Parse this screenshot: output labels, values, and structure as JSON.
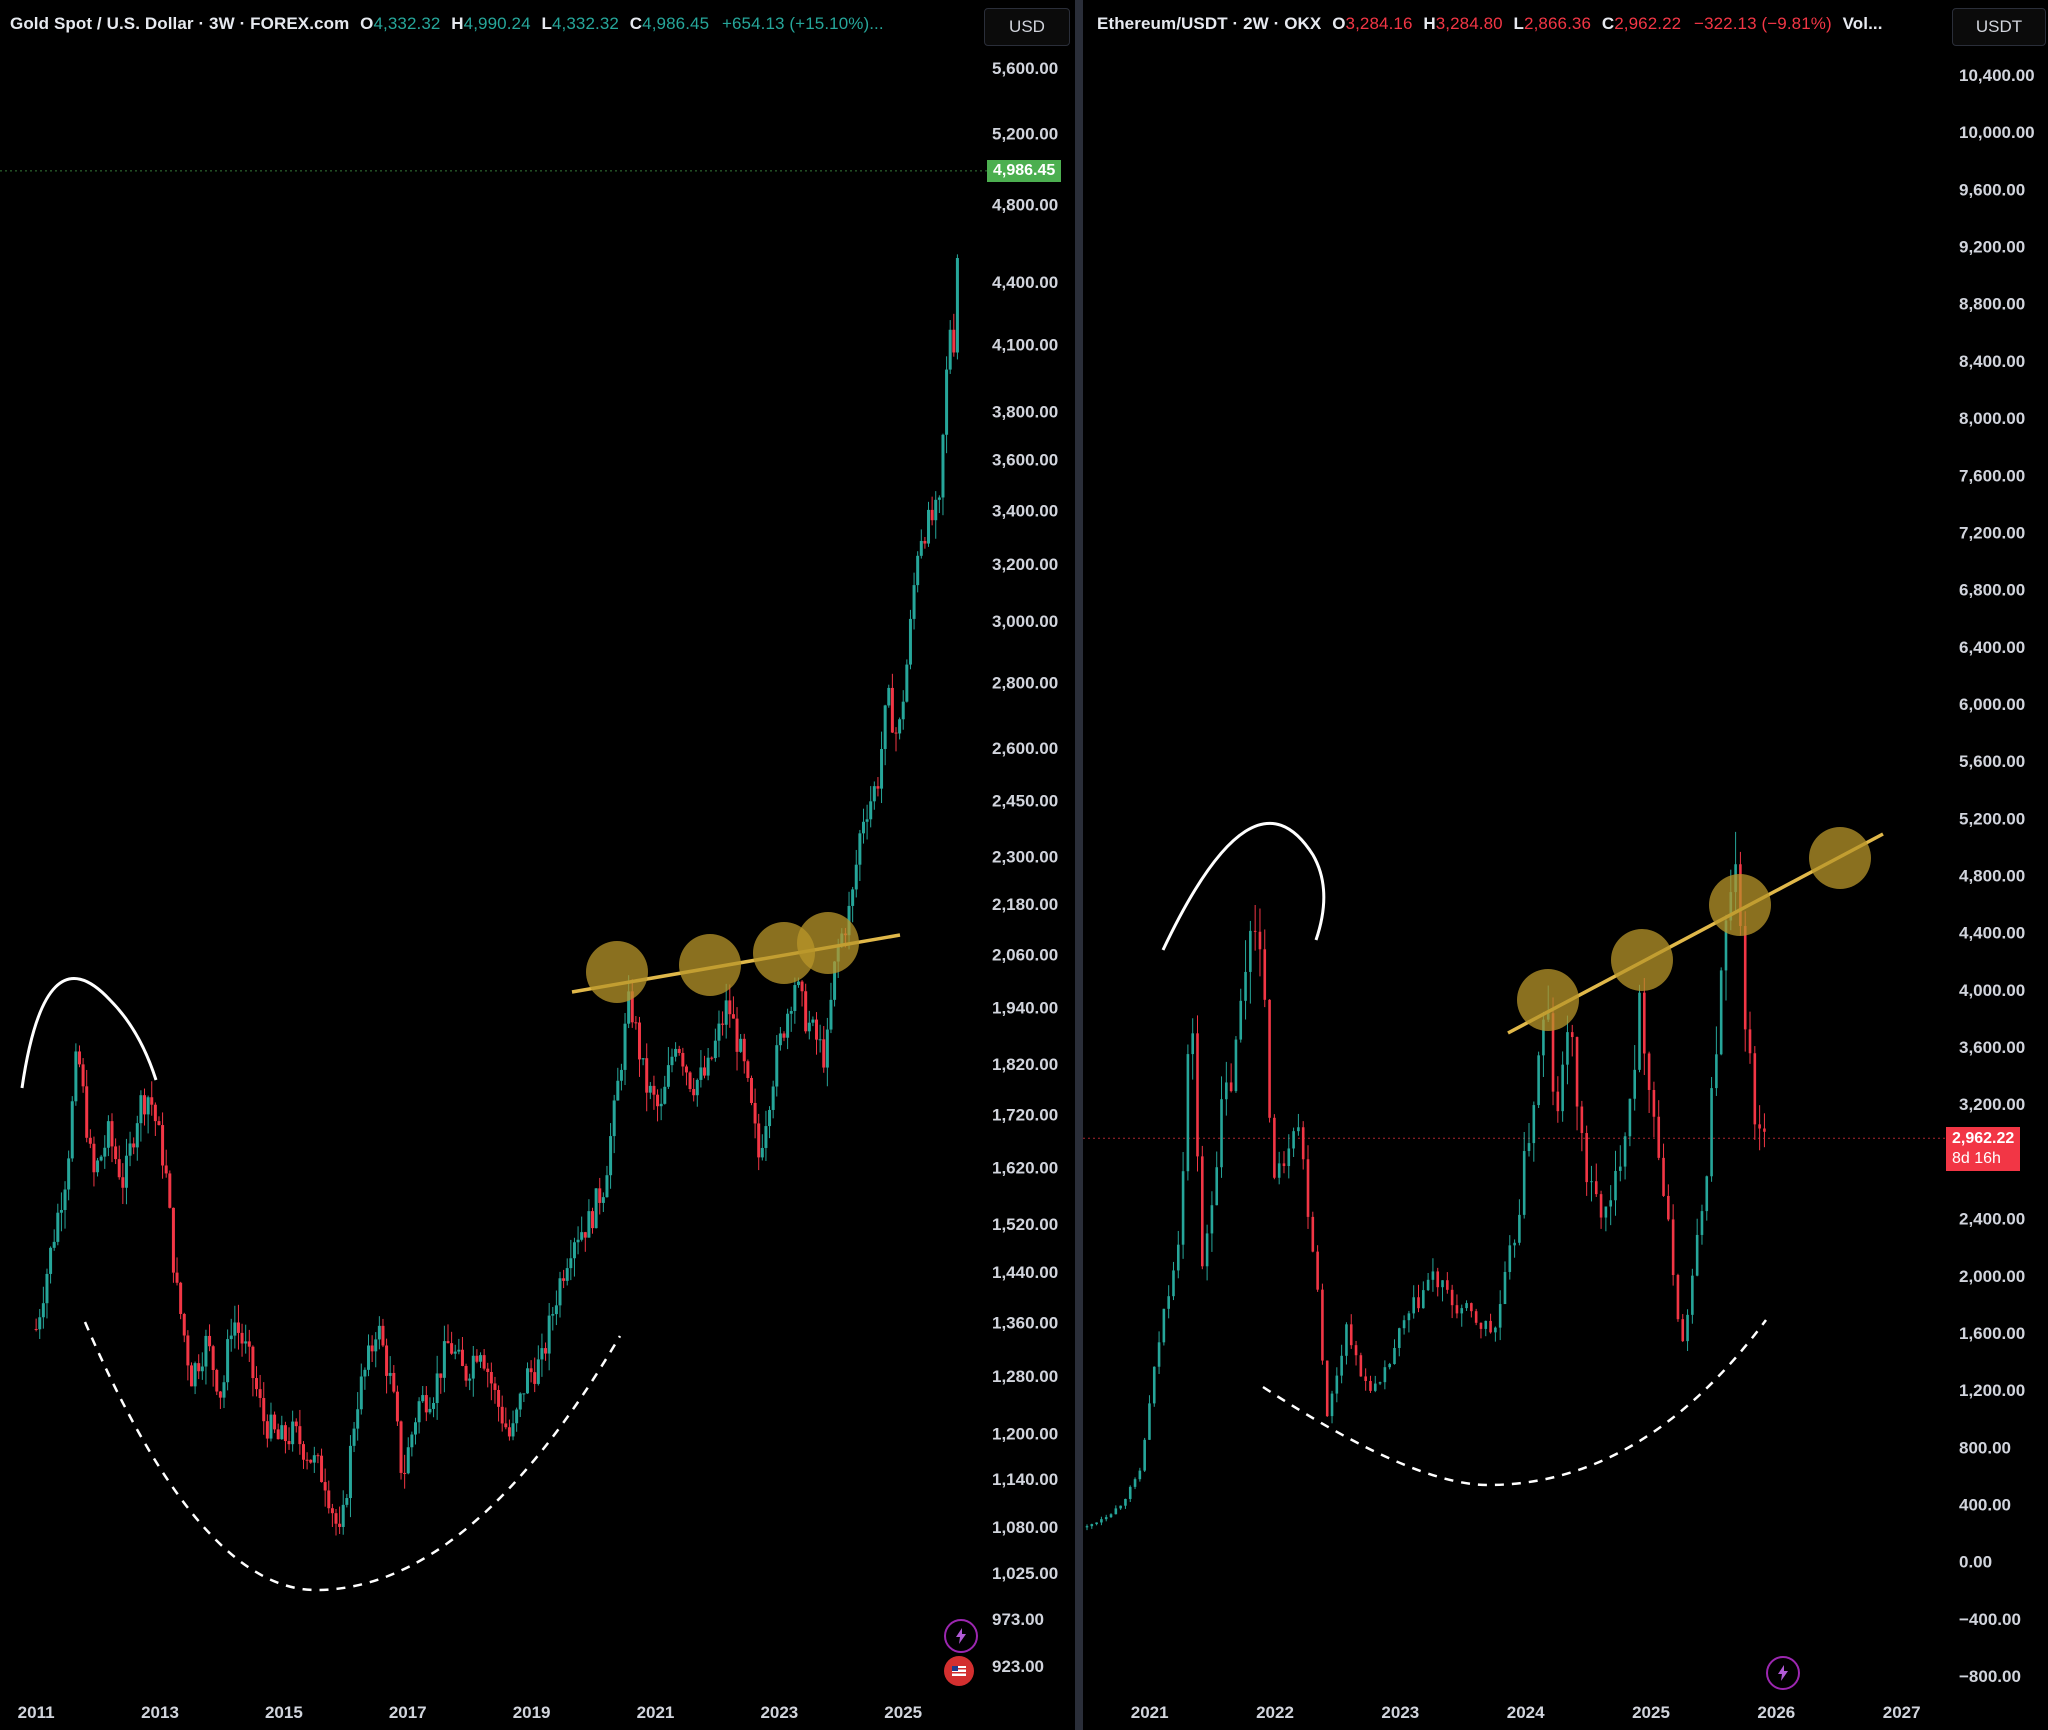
{
  "left": {
    "legend": {
      "symbol": "Gold Spot / U.S. Dollar · 3W · FOREX.com",
      "o_label": "O",
      "o": "4,332.32",
      "h_label": "H",
      "h": "4,990.24",
      "l_label": "L",
      "l": "4,332.32",
      "c_label": "C",
      "c": "4,986.45",
      "change": "+654.13 (+15.10%)..."
    },
    "currency": "USD",
    "last_price": "4,986.45",
    "y_ticks": [
      "5,600.00",
      "5,200.00",
      "4,800.00",
      "4,400.00",
      "4,100.00",
      "3,800.00",
      "3,600.00",
      "3,400.00",
      "3,200.00",
      "3,000.00",
      "2,800.00",
      "2,600.00",
      "2,450.00",
      "2,300.00",
      "2,180.00",
      "2,060.00",
      "1,940.00",
      "1,820.00",
      "1,720.00",
      "1,620.00",
      "1,520.00",
      "1,440.00",
      "1,360.00",
      "1,280.00",
      "1,200.00",
      "1,140.00",
      "1,080.00",
      "1,025.00",
      "973.00",
      "923.00"
    ],
    "x_ticks": [
      "2011",
      "2013",
      "2015",
      "2017",
      "2019",
      "2021",
      "2023",
      "2025"
    ]
  },
  "right": {
    "legend": {
      "symbol": "Ethereum/USDT · 2W · OKX",
      "o_label": "O",
      "o": "3,284.16",
      "h_label": "H",
      "h": "3,284.80",
      "l_label": "L",
      "l": "2,866.36",
      "c_label": "C",
      "c": "2,962.22",
      "change": "−322.13 (−9.81%)",
      "extra": "Vol..."
    },
    "currency": "USDT",
    "last_price": "2,962.22",
    "countdown": "8d 16h",
    "y_ticks": [
      "10,400.00",
      "10,000.00",
      "9,600.00",
      "9,200.00",
      "8,800.00",
      "8,400.00",
      "8,000.00",
      "7,600.00",
      "7,200.00",
      "6,800.00",
      "6,400.00",
      "6,000.00",
      "5,600.00",
      "5,200.00",
      "4,800.00",
      "4,400.00",
      "4,000.00",
      "3,600.00",
      "3,200.00",
      "2,400.00",
      "2,000.00",
      "1,600.00",
      "1,200.00",
      "800.00",
      "400.00",
      "0.00",
      "−400.00",
      "−800.00"
    ],
    "x_ticks": [
      "2021",
      "2022",
      "2023",
      "2024",
      "2025",
      "2026",
      "2027"
    ]
  },
  "colors": {
    "up": "#26a69a",
    "up_bright": "#4caf50",
    "down": "#f23645",
    "trendline": "#e0b84a",
    "circle_fill": "#b8952a",
    "arc": "#ffffff",
    "last_price_green": "#4caf50",
    "last_price_red": "#f23645"
  },
  "chart_data": [
    {
      "type": "candlestick",
      "title": "Gold Spot / U.S. Dollar · 3W · FOREX.com",
      "x_range": [
        "2010-06",
        "2025-12"
      ],
      "ylim": [
        923,
        5600
      ],
      "y_scale": "log",
      "grid": false,
      "series": [
        {
          "name": "Gold Spot / U.S. Dollar",
          "points": [
            [
              "2011-01",
              1350
            ],
            [
              "2011-04",
              1480
            ],
            [
              "2011-07",
              1620
            ],
            [
              "2011-09",
              1850
            ],
            [
              "2011-12",
              1600
            ],
            [
              "2012-03",
              1680
            ],
            [
              "2012-06",
              1590
            ],
            [
              "2012-09",
              1740
            ],
            [
              "2012-11",
              1760
            ],
            [
              "2013-02",
              1620
            ],
            [
              "2013-04",
              1420
            ],
            [
              "2013-07",
              1280
            ],
            [
              "2013-10",
              1330
            ],
            [
              "2014-01",
              1250
            ],
            [
              "2014-03",
              1370
            ],
            [
              "2014-06",
              1310
            ],
            [
              "2014-09",
              1220
            ],
            [
              "2014-12",
              1190
            ],
            [
              "2015-03",
              1200
            ],
            [
              "2015-06",
              1170
            ],
            [
              "2015-09",
              1140
            ],
            [
              "2015-12",
              1060
            ],
            [
              "2016-03",
              1240
            ],
            [
              "2016-06",
              1320
            ],
            [
              "2016-07",
              1360
            ],
            [
              "2016-10",
              1260
            ],
            [
              "2016-12",
              1140
            ],
            [
              "2017-03",
              1240
            ],
            [
              "2017-06",
              1260
            ],
            [
              "2017-09",
              1330
            ],
            [
              "2017-12",
              1280
            ],
            [
              "2018-03",
              1330
            ],
            [
              "2018-06",
              1250
            ],
            [
              "2018-09",
              1190
            ],
            [
              "2018-12",
              1280
            ],
            [
              "2019-03",
              1300
            ],
            [
              "2019-06",
              1410
            ],
            [
              "2019-09",
              1500
            ],
            [
              "2019-12",
              1520
            ],
            [
              "2020-03",
              1590
            ],
            [
              "2020-05",
              1720
            ],
            [
              "2020-08",
              1960
            ],
            [
              "2020-11",
              1780
            ],
            [
              "2021-02",
              1720
            ],
            [
              "2021-05",
              1880
            ],
            [
              "2021-08",
              1780
            ],
            [
              "2021-11",
              1800
            ],
            [
              "2022-03",
              1950
            ],
            [
              "2022-06",
              1820
            ],
            [
              "2022-09",
              1640
            ],
            [
              "2022-12",
              1810
            ],
            [
              "2023-04",
              2000
            ],
            [
              "2023-06",
              1920
            ],
            [
              "2023-10",
              1830
            ],
            [
              "2023-12",
              2060
            ],
            [
              "2024-03",
              2180
            ],
            [
              "2024-05",
              2400
            ],
            [
              "2024-08",
              2500
            ],
            [
              "2024-10",
              2750
            ],
            [
              "2024-12",
              2620
            ],
            [
              "2025-02",
              2900
            ],
            [
              "2025-04",
              3300
            ],
            [
              "2025-06",
              3350
            ],
            [
              "2025-08",
              3400
            ],
            [
              "2025-09",
              3800
            ],
            [
              "2025-10",
              4200
            ],
            [
              "2025-11",
              4100
            ],
            [
              "2025-12",
              4986.45
            ]
          ]
        }
      ]
    },
    {
      "type": "candlestick",
      "title": "Ethereum/USDT · 2W · OKX",
      "x_range": [
        "2020-07",
        "2027-04"
      ],
      "ylim": [
        -800,
        10400
      ],
      "grid": false,
      "series": [
        {
          "name": "Ethereum/USDT",
          "points": [
            [
              "2020-07",
              240
            ],
            [
              "2020-10",
              380
            ],
            [
              "2020-12",
              600
            ],
            [
              "2021-02",
              1600
            ],
            [
              "2021-04",
              2400
            ],
            [
              "2021-05",
              4000
            ],
            [
              "2021-06",
              2000
            ],
            [
              "2021-08",
              3200
            ],
            [
              "2021-09",
              3400
            ],
            [
              "2021-11",
              4700
            ],
            [
              "2021-12",
              3800
            ],
            [
              "2022-01",
              2600
            ],
            [
              "2022-03",
              3200
            ],
            [
              "2022-05",
              2000
            ],
            [
              "2022-06",
              1000
            ],
            [
              "2022-08",
              1700
            ],
            [
              "2022-09",
              1300
            ],
            [
              "2022-11",
              1200
            ],
            [
              "2023-01",
              1600
            ],
            [
              "2023-04",
              2000
            ],
            [
              "2023-06",
              1800
            ],
            [
              "2023-08",
              1700
            ],
            [
              "2023-10",
              1600
            ],
            [
              "2023-12",
              2300
            ],
            [
              "2024-03",
              3900
            ],
            [
              "2024-04",
              3000
            ],
            [
              "2024-05",
              3800
            ],
            [
              "2024-07",
              2600
            ],
            [
              "2024-09",
              2400
            ],
            [
              "2024-11",
              3300
            ],
            [
              "2024-12",
              3900
            ],
            [
              "2025-02",
              2700
            ],
            [
              "2025-04",
              1500
            ],
            [
              "2025-06",
              2500
            ],
            [
              "2025-08",
              4300
            ],
            [
              "2025-09",
              4800
            ],
            [
              "2025-10",
              3900
            ],
            [
              "2025-11",
              3000
            ],
            [
              "2025-12",
              2962.22
            ]
          ]
        }
      ]
    }
  ]
}
